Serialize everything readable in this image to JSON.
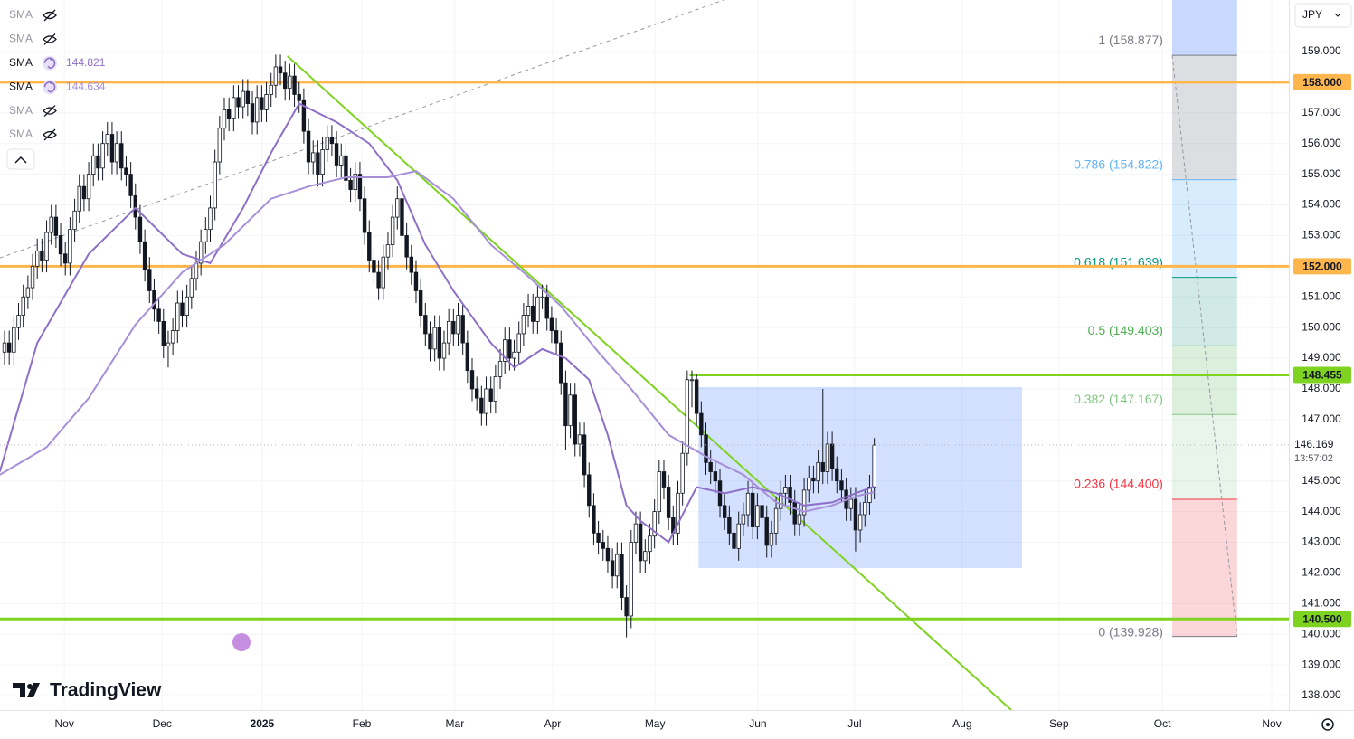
{
  "chart_data": {
    "type": "candlestick",
    "currency": "JPY",
    "countdown": "13:57:02",
    "brand": "TradingView",
    "xlim": [
      -0.97,
      274.66
    ],
    "ylim": [
      137.53,
      160.68
    ],
    "grid": true,
    "candle_colors": {
      "up": "#ffffff",
      "down": "#131722",
      "wick": "#131722"
    },
    "xticks": [
      {
        "value": 12.8,
        "label": "Nov"
      },
      {
        "value": 33.7,
        "label": "Dec"
      },
      {
        "value": 55.1,
        "label": "2025"
      },
      {
        "value": 76.4,
        "label": "Feb"
      },
      {
        "value": 96.3,
        "label": "Mar"
      },
      {
        "value": 117.2,
        "label": "Apr"
      },
      {
        "value": 139.1,
        "label": "May"
      },
      {
        "value": 161.1,
        "label": "Jun"
      },
      {
        "value": 181.8,
        "label": "Jul"
      },
      {
        "value": 204.8,
        "label": "Aug"
      },
      {
        "value": 225.5,
        "label": "Sep"
      },
      {
        "value": 247.6,
        "label": "Oct"
      },
      {
        "value": 271.0,
        "label": "Nov"
      }
    ],
    "yticks": [
      {
        "value": 138,
        "label": "138.000"
      },
      {
        "value": 139,
        "label": "139.000"
      },
      {
        "value": 140,
        "label": "140.000"
      },
      {
        "value": 141,
        "label": "141.000"
      },
      {
        "value": 142,
        "label": "142.000"
      },
      {
        "value": 143,
        "label": "143.000"
      },
      {
        "value": 144,
        "label": "144.000"
      },
      {
        "value": 145,
        "label": "145.000"
      },
      {
        "value": 146,
        "label": "146.000"
      },
      {
        "value": 147,
        "label": "147.000"
      },
      {
        "value": 148,
        "label": "148.000"
      },
      {
        "value": 149,
        "label": "149.000"
      },
      {
        "value": 150,
        "label": "150.000"
      },
      {
        "value": 151,
        "label": "151.000"
      },
      {
        "value": 152,
        "label": "152.000"
      },
      {
        "value": 153,
        "label": "153.000"
      },
      {
        "value": 154,
        "label": "154.000"
      },
      {
        "value": 155,
        "label": "155.000"
      },
      {
        "value": 156,
        "label": "156.000"
      },
      {
        "value": 157,
        "label": "157.000"
      },
      {
        "value": 158,
        "label": "158.000"
      },
      {
        "value": 159,
        "label": "159.000"
      }
    ],
    "legend": [
      {
        "name": "SMA",
        "visible": false
      },
      {
        "name": "SMA",
        "visible": false
      },
      {
        "name": "SMA",
        "visible": true,
        "value": 144.821
      },
      {
        "name": "SMA",
        "visible": true,
        "value": 144.634
      },
      {
        "name": "SMA",
        "visible": false
      },
      {
        "name": "SMA",
        "visible": false
      }
    ],
    "candles": {
      "open": [
        149.2,
        149.5,
        149.2,
        150.0,
        150.4,
        151.0,
        151.3,
        152.0,
        152.5,
        152.2,
        153.1,
        153.6,
        153.0,
        152.4,
        152.1,
        153.2,
        153.8,
        154.6,
        154.2,
        155.0,
        155.6,
        155.2,
        156.0,
        156.3,
        155.4,
        156.0,
        155.2,
        155.0,
        154.3,
        153.6,
        152.8,
        151.9,
        151.2,
        150.6,
        150.2,
        149.4,
        149.5,
        149.9,
        150.8,
        150.4,
        151.0,
        151.6,
        152.1,
        152.8,
        153.2,
        153.9,
        155.4,
        156.5,
        157.1,
        156.8,
        157.5,
        157.2,
        157.7,
        157.3,
        156.7,
        157.5,
        157.1,
        157.6,
        157.9,
        158.5,
        158.3,
        157.8,
        158.2,
        157.6,
        157.4,
        156.4,
        155.4,
        155.7,
        155.0,
        155.8,
        156.2,
        156.0,
        155.3,
        155.6,
        154.8,
        154.5,
        155.0,
        154.2,
        153.1,
        152.2,
        151.8,
        151.3,
        152.3,
        152.7,
        153.6,
        154.2,
        153.0,
        152.3,
        151.8,
        151.2,
        150.4,
        149.8,
        149.3,
        150.0,
        149.0,
        149.5,
        150.2,
        149.8,
        150.4,
        149.5,
        148.6,
        148.0,
        147.7,
        147.2,
        148.0,
        147.6,
        148.4,
        148.9,
        149.6,
        149.0,
        149.2,
        149.8,
        150.4,
        150.7,
        150.2,
        151.0,
        151.0,
        150.3,
        149.9,
        149.5,
        148.2,
        146.8,
        147.8,
        146.2,
        146.5,
        145.2,
        144.2,
        143.3,
        143.0,
        142.8,
        142.4,
        141.9,
        142.6,
        141.2,
        140.6,
        143.0,
        143.6,
        142.4,
        142.7,
        143.2,
        144.0,
        145.3,
        144.8,
        143.8,
        143.3,
        144.6,
        145.9,
        148.3,
        148.3,
        147.2,
        146.5,
        145.6,
        145.3,
        145.0,
        144.2,
        143.8,
        143.3,
        142.8,
        143.6,
        143.9,
        144.6,
        143.5,
        144.2,
        143.8,
        142.9,
        143.3,
        144.1,
        144.6,
        144.8,
        144.3,
        143.6,
        143.9,
        144.7,
        145.1,
        145.0,
        145.6,
        145.3,
        146.2,
        145.4,
        145.0,
        144.7,
        144.1,
        144.4,
        143.4,
        143.9,
        144.3,
        144.8
      ],
      "high": [
        149.9,
        149.9,
        150.4,
        150.8,
        151.4,
        151.7,
        152.4,
        152.9,
        152.9,
        153.5,
        154.0,
        154.0,
        153.4,
        152.8,
        153.6,
        154.2,
        155.0,
        155.0,
        155.4,
        156.0,
        156.0,
        156.4,
        156.7,
        156.7,
        156.4,
        156.4,
        155.6,
        155.4,
        154.7,
        154.0,
        153.2,
        152.3,
        151.6,
        151.0,
        150.6,
        149.9,
        150.3,
        151.2,
        151.2,
        151.4,
        152.0,
        152.5,
        153.2,
        153.6,
        154.3,
        155.8,
        156.9,
        157.5,
        157.5,
        157.9,
        157.9,
        158.1,
        158.1,
        157.7,
        157.9,
        157.9,
        158.0,
        158.3,
        158.9,
        158.9,
        158.7,
        158.6,
        158.6,
        158.0,
        157.8,
        156.8,
        156.1,
        156.1,
        156.2,
        156.6,
        156.6,
        156.4,
        156.0,
        156.0,
        155.2,
        155.4,
        155.4,
        154.6,
        153.5,
        152.6,
        152.2,
        152.7,
        153.1,
        154.0,
        154.6,
        154.6,
        153.4,
        152.7,
        152.2,
        151.6,
        150.8,
        150.2,
        150.4,
        150.4,
        149.9,
        150.6,
        150.6,
        150.8,
        150.8,
        149.9,
        149.0,
        148.4,
        148.1,
        148.4,
        148.4,
        148.8,
        149.3,
        150.0,
        150.0,
        149.6,
        150.2,
        150.8,
        151.1,
        151.1,
        151.4,
        151.4,
        151.4,
        150.7,
        150.3,
        149.9,
        148.6,
        148.2,
        148.2,
        146.9,
        146.9,
        145.6,
        144.6,
        143.7,
        143.4,
        143.2,
        142.8,
        143.0,
        143.0,
        141.6,
        143.4,
        144.0,
        144.0,
        143.1,
        143.6,
        144.4,
        145.7,
        145.7,
        145.2,
        144.2,
        145.0,
        146.3,
        148.6,
        148.6,
        148.5,
        147.6,
        146.9,
        146.0,
        145.7,
        145.4,
        144.6,
        144.2,
        143.7,
        144.0,
        144.3,
        145.0,
        145.0,
        144.6,
        144.6,
        144.2,
        143.7,
        144.5,
        145.0,
        145.2,
        145.2,
        144.7,
        144.3,
        145.1,
        145.5,
        145.5,
        146.0,
        148.0,
        146.6,
        146.6,
        145.8,
        145.4,
        145.1,
        144.8,
        144.8,
        144.3,
        144.7,
        145.2,
        146.4
      ],
      "low": [
        148.8,
        148.8,
        148.8,
        149.6,
        150.0,
        150.6,
        150.9,
        151.6,
        151.8,
        151.8,
        152.7,
        152.6,
        152.0,
        151.7,
        151.7,
        152.8,
        153.4,
        153.8,
        153.8,
        154.6,
        154.8,
        154.8,
        155.6,
        155.0,
        155.0,
        154.8,
        154.6,
        153.9,
        153.2,
        152.4,
        151.5,
        150.8,
        150.2,
        149.8,
        149.0,
        148.7,
        149.1,
        149.5,
        150.0,
        150.0,
        150.6,
        151.2,
        151.7,
        152.4,
        152.8,
        153.5,
        155.0,
        156.1,
        156.4,
        156.4,
        156.8,
        156.8,
        156.9,
        156.3,
        156.3,
        156.7,
        156.7,
        157.2,
        157.5,
        157.9,
        157.4,
        157.4,
        157.2,
        157.0,
        156.0,
        155.0,
        155.0,
        154.6,
        154.6,
        155.4,
        155.6,
        154.9,
        154.9,
        154.4,
        154.1,
        154.1,
        153.8,
        152.7,
        151.8,
        151.4,
        150.9,
        150.9,
        151.9,
        152.3,
        153.2,
        152.6,
        151.9,
        151.4,
        150.8,
        150.0,
        149.4,
        148.9,
        148.9,
        148.6,
        148.6,
        149.1,
        149.4,
        149.4,
        149.1,
        148.2,
        147.6,
        147.3,
        146.8,
        146.8,
        147.2,
        147.2,
        148.0,
        148.5,
        148.6,
        148.6,
        148.8,
        149.4,
        150.0,
        149.8,
        149.8,
        150.6,
        149.9,
        149.5,
        149.1,
        147.8,
        146.0,
        146.4,
        145.8,
        145.8,
        144.8,
        143.8,
        142.9,
        142.6,
        142.4,
        142.0,
        141.5,
        141.5,
        140.8,
        139.9,
        140.2,
        142.6,
        142.0,
        142.0,
        142.3,
        142.8,
        143.6,
        144.4,
        143.4,
        142.9,
        142.9,
        144.2,
        145.5,
        147.4,
        146.8,
        146.1,
        145.2,
        144.9,
        144.6,
        143.8,
        143.4,
        142.9,
        142.4,
        142.4,
        143.2,
        143.5,
        143.1,
        143.1,
        143.4,
        142.5,
        142.5,
        142.9,
        143.7,
        144.2,
        143.9,
        143.2,
        143.2,
        143.5,
        144.3,
        144.6,
        144.6,
        144.9,
        144.9,
        145.0,
        144.6,
        144.3,
        143.7,
        143.7,
        142.7,
        143.0,
        143.5,
        143.9,
        144.4
      ],
      "close": [
        149.5,
        149.2,
        150.0,
        150.4,
        151.0,
        151.3,
        152.0,
        152.5,
        152.2,
        153.1,
        153.6,
        153.0,
        152.4,
        152.1,
        153.2,
        153.8,
        154.6,
        154.2,
        155.0,
        155.6,
        155.2,
        156.0,
        156.3,
        155.4,
        156.0,
        155.2,
        155.0,
        154.3,
        153.6,
        152.8,
        151.9,
        151.2,
        150.6,
        150.2,
        149.4,
        149.5,
        149.9,
        150.8,
        150.4,
        151.0,
        151.6,
        152.1,
        152.8,
        153.2,
        153.9,
        155.4,
        156.5,
        157.1,
        156.8,
        157.5,
        157.2,
        157.7,
        157.3,
        156.7,
        157.5,
        157.1,
        157.6,
        157.9,
        158.5,
        158.3,
        157.8,
        158.2,
        157.6,
        157.4,
        156.4,
        155.4,
        155.7,
        155.0,
        155.8,
        156.2,
        156.0,
        155.3,
        155.6,
        154.8,
        154.5,
        155.0,
        154.2,
        153.1,
        152.2,
        151.8,
        151.3,
        152.3,
        152.7,
        153.6,
        154.2,
        153.0,
        152.3,
        151.8,
        151.2,
        150.4,
        149.8,
        149.3,
        150.0,
        149.0,
        149.5,
        150.2,
        149.8,
        150.4,
        149.5,
        148.6,
        148.0,
        147.7,
        147.2,
        148.0,
        147.6,
        148.4,
        148.9,
        149.6,
        149.0,
        149.2,
        149.8,
        150.4,
        150.7,
        150.2,
        151.0,
        151.0,
        150.3,
        149.9,
        149.5,
        148.2,
        146.8,
        147.8,
        146.2,
        146.5,
        145.2,
        144.2,
        143.3,
        143.0,
        142.8,
        142.4,
        141.9,
        142.6,
        141.2,
        140.6,
        143.0,
        143.6,
        142.4,
        142.7,
        143.2,
        144.0,
        145.3,
        144.8,
        143.8,
        143.3,
        144.6,
        145.9,
        148.3,
        148.3,
        147.2,
        146.5,
        145.6,
        145.3,
        145.0,
        144.2,
        143.8,
        143.3,
        142.8,
        143.6,
        143.9,
        144.6,
        143.5,
        144.2,
        143.8,
        142.9,
        143.3,
        144.1,
        144.6,
        144.8,
        144.3,
        143.6,
        143.9,
        144.7,
        145.1,
        145.0,
        145.6,
        145.3,
        146.2,
        145.4,
        145.0,
        144.7,
        144.1,
        144.4,
        143.4,
        143.9,
        144.3,
        144.8,
        146.169
      ]
    },
    "sma": [
      {
        "color": "#8e6fc8",
        "width": 2,
        "x": [
          -1,
          7,
          18,
          28,
          38,
          44,
          51,
          57,
          63,
          71,
          78,
          84,
          90,
          96,
          104,
          109,
          115,
          120,
          125,
          129,
          133,
          136,
          142,
          148,
          154,
          160,
          165,
          171,
          177,
          182,
          186
        ],
        "values": [
          145.3,
          149.5,
          152.4,
          153.9,
          152.4,
          152.1,
          153.9,
          155.7,
          157.3,
          156.7,
          156.0,
          154.8,
          152.7,
          151.2,
          149.5,
          148.7,
          149.3,
          149.0,
          148.3,
          146.5,
          144.2,
          143.7,
          143.0,
          144.8,
          144.6,
          144.8,
          144.6,
          144.2,
          144.3,
          144.6,
          144.821
        ]
      },
      {
        "color": "#a68fd8",
        "width": 2,
        "x": [
          -1,
          9,
          18,
          28,
          38,
          47,
          57,
          65,
          73,
          82,
          88,
          96,
          104,
          111,
          119,
          127,
          134,
          142,
          150,
          158,
          165,
          171,
          177,
          182,
          186
        ],
        "values": [
          145.2,
          146.1,
          147.7,
          150.1,
          151.8,
          152.7,
          154.2,
          154.6,
          154.9,
          154.9,
          155.1,
          154.2,
          152.7,
          151.8,
          150.7,
          149.2,
          148.0,
          146.5,
          145.8,
          145.2,
          144.3,
          144.0,
          144.2,
          144.5,
          144.634
        ]
      }
    ],
    "hlines": [
      {
        "value": 158,
        "label": "158.000",
        "color": "#ffb74d",
        "start": -0.97
      },
      {
        "value": 152,
        "label": "152.000",
        "color": "#ffb74d",
        "start": -0.97
      },
      {
        "value": 148.455,
        "label": "148.455",
        "color": "#7ed321",
        "start": 146.5
      },
      {
        "value": 140.5,
        "label": "140.500",
        "color": "#7ed321",
        "start": -0.97
      }
    ],
    "trendline": {
      "color": "#7ed321",
      "points": [
        [
          60.5,
          158.85
        ],
        [
          215.3,
          137.53
        ]
      ]
    },
    "dashed_line": {
      "color": "#9598a1",
      "points": [
        [
          -0.97,
          152.27
        ],
        [
          153.8,
          160.68
        ]
      ]
    },
    "rectangle": {
      "color": "rgba(41,98,255,0.2)",
      "x": [
        148.4,
        217.6
      ],
      "y": [
        142.16,
        148.06
      ]
    },
    "fib": {
      "x": [
        249.7,
        263.6
      ],
      "top_color": "rgba(41,98,255,0.25)",
      "levels": [
        {
          "label": "1 (158.877)",
          "value": 158.877,
          "color": "#787b86",
          "fill": "rgba(120,123,134,0.25)"
        },
        {
          "label": "0.786 (154.822)",
          "value": 154.822,
          "color": "#64b5f6",
          "fill": "rgba(33,150,243,0.18)"
        },
        {
          "label": "0.618 (151.639)",
          "value": 151.639,
          "color": "#089981",
          "fill": "rgba(0,137,123,0.18)"
        },
        {
          "label": "0.5 (149.403)",
          "value": 149.403,
          "color": "#4caf50",
          "fill": "rgba(76,175,80,0.2)"
        },
        {
          "label": "0.382 (147.167)",
          "value": 147.167,
          "color": "#81c784",
          "fill": "rgba(76,175,80,0.12)"
        },
        {
          "label": "0.236 (144.400)",
          "value": 144.4,
          "color": "#f23645",
          "fill": "rgba(242,54,69,0.2)"
        },
        {
          "label": "0 (139.928)",
          "value": 139.928,
          "color": "#787b86"
        }
      ]
    }
  }
}
